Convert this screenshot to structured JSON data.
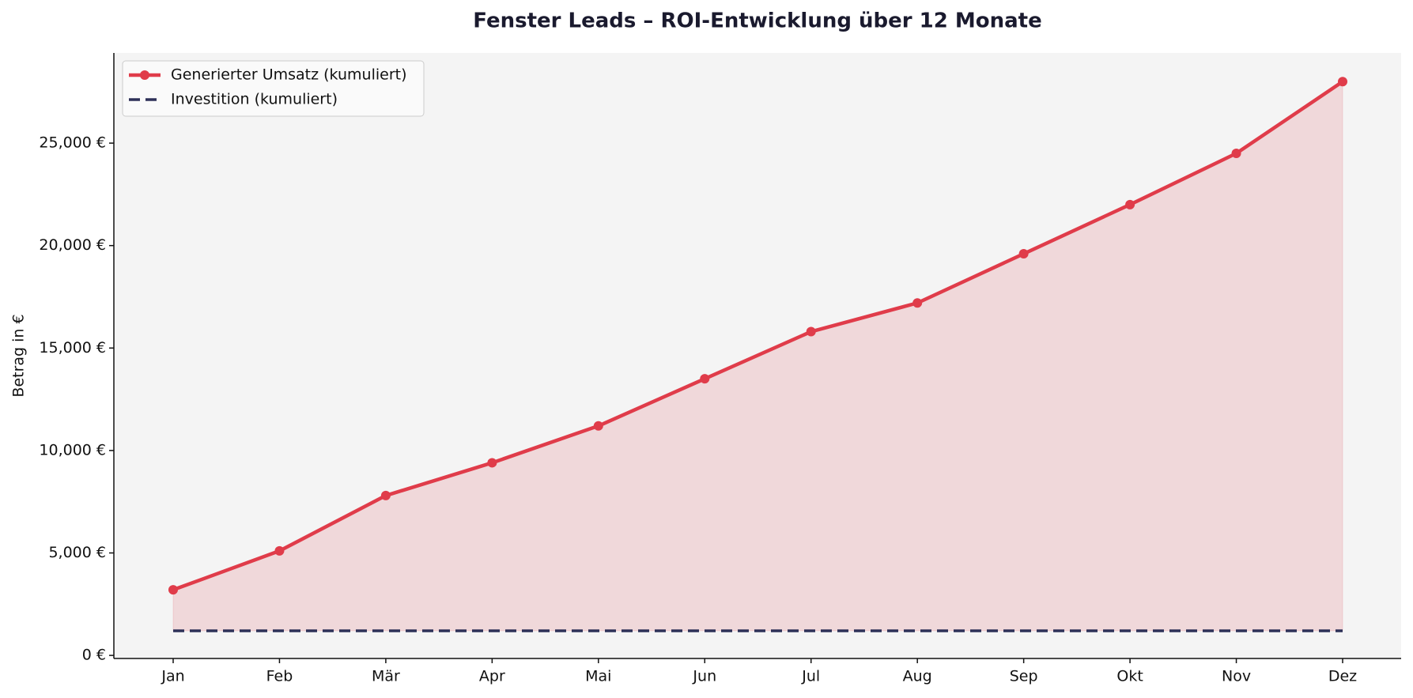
{
  "chart_data": {
    "type": "line",
    "title": "Fenster Leads – ROI-Entwicklung über 12 Monate",
    "ylabel": "Betrag in €",
    "categories": [
      "Jan",
      "Feb",
      "Mär",
      "Apr",
      "Mai",
      "Jun",
      "Jul",
      "Aug",
      "Sep",
      "Okt",
      "Nov",
      "Dez"
    ],
    "series": [
      {
        "name": "Generierter Umsatz (kumuliert)",
        "color": "#e03c4a",
        "style": "solid",
        "markers": true,
        "values": [
          3200,
          5100,
          7800,
          9400,
          11200,
          13500,
          15800,
          17200,
          19600,
          22000,
          24500,
          28000
        ]
      },
      {
        "name": "Investition (kumuliert)",
        "color": "#2d3058",
        "style": "dashed",
        "markers": false,
        "values": [
          1200,
          1200,
          1200,
          1200,
          1200,
          1200,
          1200,
          1200,
          1200,
          1200,
          1200,
          1200
        ]
      }
    ],
    "fill_between": true,
    "fill_color": "#e03c4a",
    "ylim": [
      -150,
      29400
    ],
    "yticks": [
      {
        "value": 0,
        "label": "0 €"
      },
      {
        "value": 5000,
        "label": "5,000 €"
      },
      {
        "value": 10000,
        "label": "10,000 €"
      },
      {
        "value": 15000,
        "label": "15,000 €"
      },
      {
        "value": 20000,
        "label": "20,000 €"
      },
      {
        "value": 25000,
        "label": "25,000 €"
      }
    ],
    "grid": false,
    "legend": "upper left"
  }
}
